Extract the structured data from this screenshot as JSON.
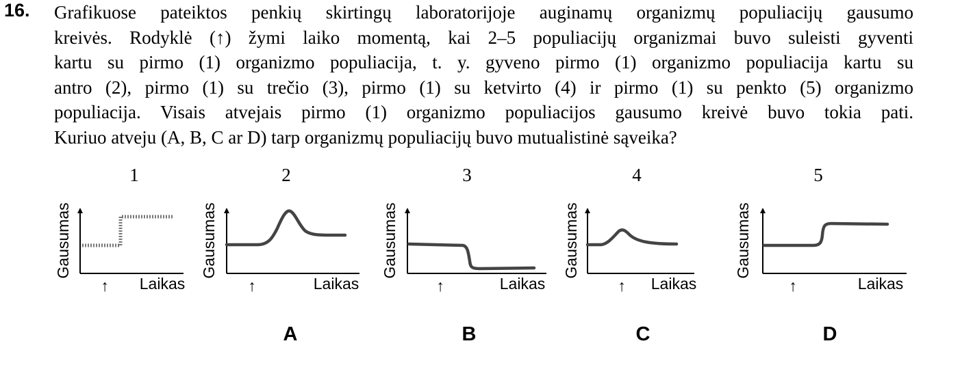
{
  "question": {
    "number": "16.",
    "lines": [
      "Grafikuose pateiktos penkių skirtingų laboratorijoje auginamų organizmų populiacijų gausumo",
      "kreivės. Rodyklė (↑) žymi laiko momentą, kai 2–5 populiacijų organizmai buvo suleisti gyventi",
      "kartu su pirmo (1) organizmo populiacija, t. y. gyveno pirmo (1) organizmo populiacija kartu su",
      "antro (2), pirmo (1) su trečio (3), pirmo (1) su ketvirto (4) ir pirmo (1) su penkto (5) organizmo",
      "populiacija. Visais atvejais pirmo (1) organizmo populiacijos gausumo kreivė buvo tokia pati.",
      "Kuriuo atveju (A, B, C ar D) tarp organizmų populiacijų buvo mutualistinė sąveika?"
    ]
  },
  "graphs": [
    {
      "number": "1",
      "ylabel": "Gausumas",
      "xlabel": "Laikas",
      "arrow": "↑",
      "option": ""
    },
    {
      "number": "2",
      "ylabel": "Gausumas",
      "xlabel": "Laikas",
      "arrow": "↑",
      "option": "A"
    },
    {
      "number": "3",
      "ylabel": "Gausumas",
      "xlabel": "Laikas",
      "arrow": "↑",
      "option": "B"
    },
    {
      "number": "4",
      "ylabel": "Gausumas",
      "xlabel": "Laikas",
      "arrow": "↑",
      "option": "C"
    },
    {
      "number": "5",
      "ylabel": "Gausumas",
      "xlabel": "Laikas",
      "arrow": "↑",
      "option": "D"
    }
  ],
  "colors": {
    "curve": "#444444",
    "axis": "#000000"
  }
}
